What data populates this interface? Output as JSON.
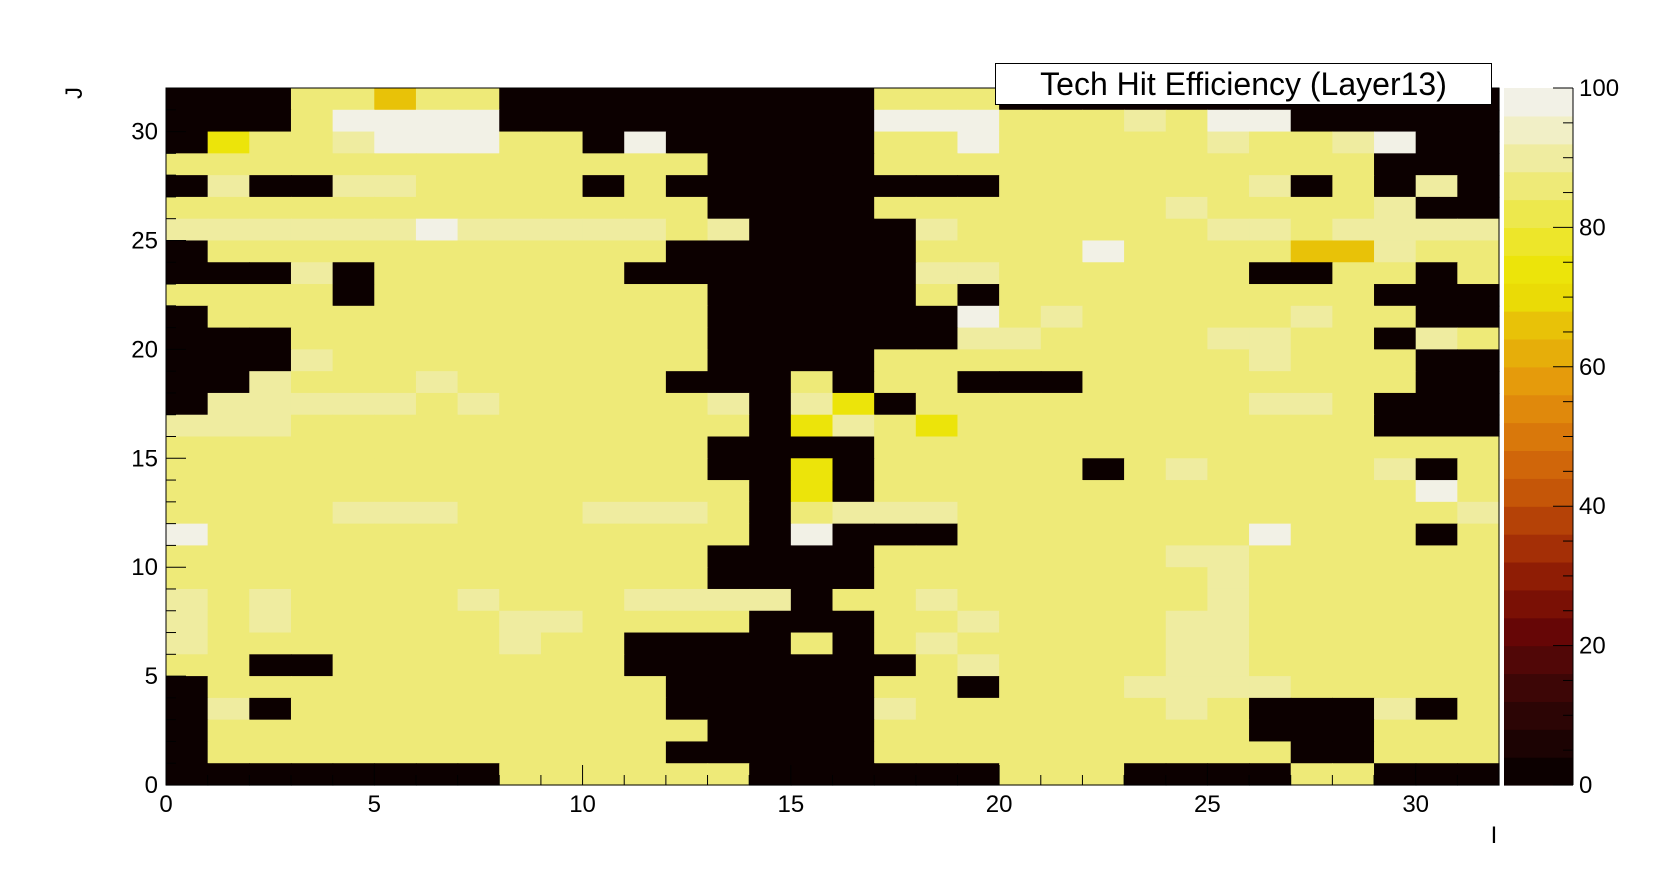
{
  "chart_data": {
    "type": "heatmap",
    "title": "Tech Hit Efficiency (Layer13)",
    "xlabel": "I",
    "ylabel": "J",
    "xlim": [
      0,
      32
    ],
    "ylim": [
      0,
      32
    ],
    "zlim": [
      0,
      100
    ],
    "x_ticks": [
      0,
      5,
      10,
      15,
      20,
      25,
      30
    ],
    "y_ticks": [
      0,
      5,
      10,
      15,
      20,
      25,
      30
    ],
    "z_ticks": [
      0,
      20,
      40,
      60,
      80,
      100
    ],
    "palette": [
      "#0c0000",
      "#1c0303",
      "#2c0505",
      "#3d0606",
      "#510707",
      "#660606",
      "#7a1005",
      "#8f1d05",
      "#a42f06",
      "#b54207",
      "#c55608",
      "#d0660a",
      "#d9780b",
      "#e0890c",
      "#e59b0c",
      "#e6ae0a",
      "#e8c208",
      "#eadb06",
      "#ece40a",
      "#ede62a",
      "#ede84d",
      "#eeea78",
      "#efeca0",
      "#f1efc6",
      "#f2f1e6"
    ],
    "matrix_rows_top_to_bottom": [
      "00022622000000000222000000000000",
      "00024555000000000455222325500000",
      "01223445220400000224222223223400",
      "22222222222220000222222222222000",
      "03003322220200000000222222302030",
      "22222222222220000222222232222300",
      "33333353333323000032222223323333",
      "02222222222200000022225222266322",
      "00030222222000000033222222002202",
      "22220222222220000020222222222000",
      "02222222222220000004232222232200",
      "00022222222220000003322223322032",
      "00032222222220000222222222322200",
      "00322232222200020220002222222200",
      "03333323222223031022222222332000",
      "33322222222222013212222222222000",
      "22222222222220000222222222222222",
      "22222222222220010222220232222302",
      "22222222222222010222222222222252",
      "22223332223332023332222222222223",
      "52222222222222040002222222522202",
      "22222222222220000222222233222222",
      "22222222222220000222222223222222",
      "32322223222333302232222223222222",
      "32322222332222000223222233222222",
      "32222222322000020232222233222222",
      "22002222222000000023222233222222",
      "02222222222200000220222333322222",
      "03022222222200000322222232000302",
      "02222222222220000222222222000222",
      "02222222222200000222222222200222",
      "00000000222222000000222000022000"
    ],
    "level_values": [
      0,
      72,
      85,
      90,
      96,
      96,
      66
    ]
  }
}
